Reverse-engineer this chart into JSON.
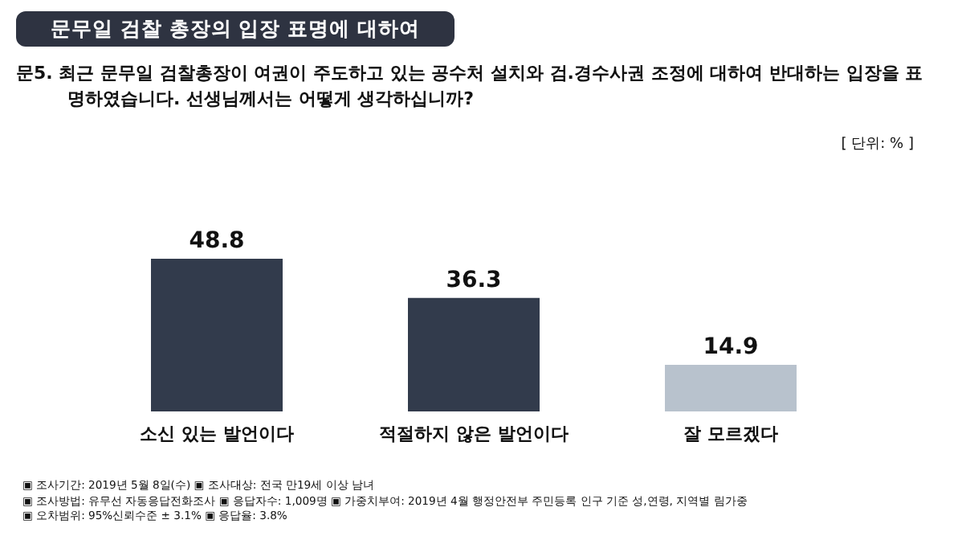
{
  "chart_data": {
    "type": "bar",
    "title": "문무일 검찰 총장의 입장 표명에 대하여",
    "subtitle": "문5. 최근 문무일 검찰총장이 여권이 주도하고 있는 공수처 설치와 검.경수사권 조정에 대하여 반대하는 입장을 표명하였습니다. 선생님께서는 어떻게 생각하십니까?",
    "categories": [
      "소신 있는 발언이다",
      "적절하지 않은 발언이다",
      "잘 모르겠다"
    ],
    "values": [
      48.8,
      36.3,
      14.9
    ],
    "colors": [
      "#323b4c",
      "#323b4c",
      "#b8c2cd"
    ],
    "data_labels": true,
    "annotations": [
      "[ 단위: % ]",
      "▣ 조사기간: 2019년 5월 8일(수) ▣ 조사대상: 전국 만19세 이상 남녀",
      "▣ 조사방법: 유무선 자동응답전화조사 ▣ 응답자수: 1,009명 ▣ 가중치부여: 2019년 4월 행정안전부 주민등록 인구 기준 성,연령, 지역별 림가중",
      "▣ 오차범위: 95%신뢰수준 ± 3.1% ▣ 응답율: 3.8%"
    ]
  }
}
